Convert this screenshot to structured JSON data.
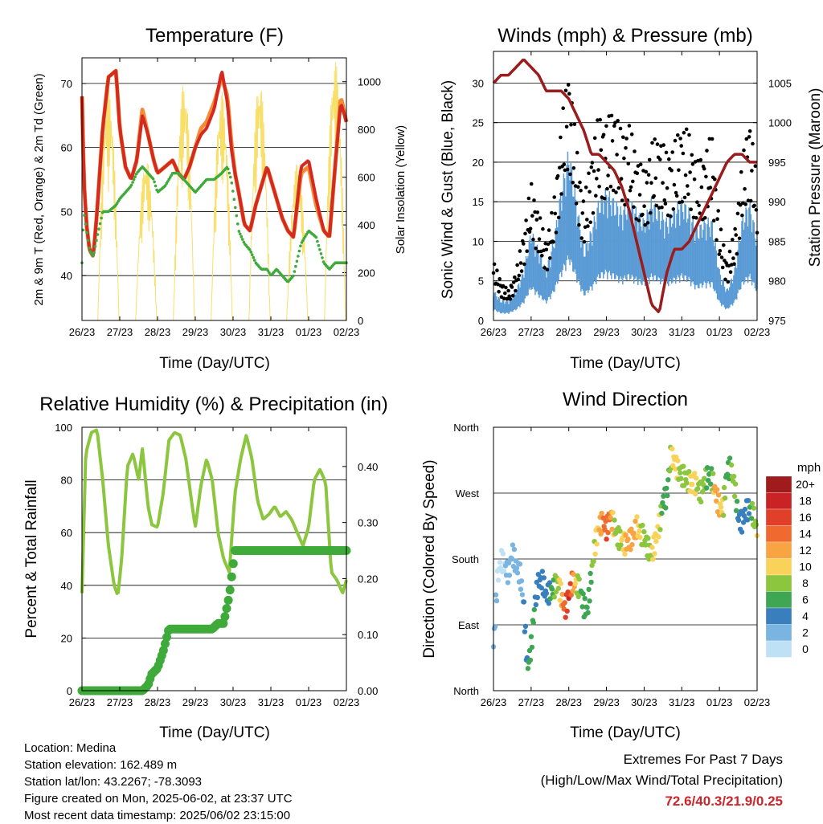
{
  "panels": {
    "temperature": {
      "title": "Temperature (F)",
      "ylabel_left": "2m & 9m T (Red, Orange) & 2m Td (Green)",
      "ylabel_right": "Solar Insolation (Yellow)",
      "xlabel": "Time (Day/UTC)"
    },
    "winds": {
      "title": "Winds (mph) & Pressure (mb)",
      "ylabel_left": "Sonic Wind & Gust (Blue, Black)",
      "ylabel_right": "Station Pressure (Maroon)",
      "xlabel": "Time (Day/UTC)"
    },
    "humidity": {
      "title": "Relative Humidity (%) & Precipitation (in)",
      "ylabel_left": "Percent & Total Rainfall",
      "xlabel": "Time (Day/UTC)"
    },
    "direction": {
      "title": "Wind Direction",
      "ylabel_left": "Direction (Colored By Speed)",
      "xlabel": "Time (Day/UTC)",
      "legend_title": "mph"
    }
  },
  "station": {
    "location": "Location: Medina",
    "elevation": "Station elevation: 162.489 m",
    "latlon": "Station lat/lon: 43.2267; -78.3093",
    "created": "Figure created on Mon, 2025-06-02, at 23:37 UTC",
    "recent": "Most recent data timestamp: 2025/06/02 23:15:00"
  },
  "extremes": {
    "heading": "Extremes For Past 7 Days",
    "subheading": "(High/Low/Max Wind/Total Precipitation)",
    "values": "72.6/40.3/21.9/0.25"
  },
  "colors": {
    "temp2m": "#d42a20",
    "temp9m": "#f58b35",
    "dewpoint": "#3eaa3a",
    "solar": "#f7df6a",
    "wind": "#5b9bd5",
    "gust": "#000000",
    "pressure": "#9b1c1c",
    "rh": "#8cc63f",
    "precip": "#3eaa3a"
  },
  "chart_data": [
    {
      "type": "line",
      "name": "temperature",
      "x_ticks": [
        "26/23",
        "27/23",
        "28/23",
        "29/23",
        "30/23",
        "31/23",
        "01/23",
        "02/23"
      ],
      "x": [
        0,
        0.05,
        0.12,
        0.2,
        0.3,
        0.4,
        0.55,
        0.7,
        0.9,
        1.0,
        1.15,
        1.3,
        1.45,
        1.6,
        1.75,
        1.9,
        2.0,
        2.2,
        2.4,
        2.55,
        2.7,
        2.85,
        3.0,
        3.15,
        3.3,
        3.5,
        3.7,
        3.85,
        3.95,
        4.05,
        4.15,
        4.3,
        4.45,
        4.6,
        4.75,
        4.9,
        5.0,
        5.15,
        5.3,
        5.45,
        5.6,
        5.8,
        6.0,
        6.2,
        6.4,
        6.55,
        6.7,
        6.85,
        7.0
      ],
      "series": [
        {
          "name": "2m T",
          "values": [
            68,
            55,
            48,
            44,
            43,
            50,
            63,
            71,
            72,
            63,
            57,
            55,
            58,
            65,
            62,
            58,
            56,
            57,
            58,
            56,
            55,
            57,
            60,
            62,
            63,
            66,
            72,
            67,
            60,
            56,
            53,
            48,
            47,
            51,
            54,
            57,
            55,
            52,
            49,
            47,
            46,
            57,
            58,
            52,
            47,
            46,
            57,
            67,
            64
          ]
        },
        {
          "name": "9m T",
          "values": [
            68,
            55,
            48,
            44,
            43,
            50,
            63,
            71,
            72,
            63,
            57,
            55,
            58,
            66,
            62,
            58,
            56,
            57,
            58,
            56,
            55,
            57,
            60,
            63,
            64,
            67,
            71,
            68,
            61,
            56,
            53,
            48,
            47,
            51,
            54,
            57,
            55,
            52,
            49,
            47,
            46,
            56,
            57,
            51,
            47,
            46,
            57,
            68,
            64
          ]
        },
        {
          "name": "2m Td",
          "values": [
            42,
            50,
            47,
            44,
            43,
            46,
            50,
            50,
            51,
            52,
            53,
            54,
            56,
            57,
            56,
            55,
            53,
            54,
            56,
            56,
            55,
            54,
            53,
            54,
            55,
            55,
            56,
            57,
            55,
            51,
            47,
            45,
            44,
            42,
            41,
            41,
            40,
            41,
            40,
            39,
            40,
            45,
            47,
            46,
            42,
            41,
            42,
            42,
            42
          ]
        }
      ],
      "solar_insolation_peaks": [
        {
          "x": 0.7,
          "value": 980
        },
        {
          "x": 1.7,
          "value": 680
        },
        {
          "x": 2.7,
          "value": 1000
        },
        {
          "x": 3.7,
          "value": 960
        },
        {
          "x": 4.7,
          "value": 1010
        },
        {
          "x": 5.7,
          "value": 660
        },
        {
          "x": 6.7,
          "value": 1090
        }
      ],
      "ylim": [
        33,
        74
      ],
      "y_ticks": [
        40,
        50,
        60,
        70
      ],
      "y2lim": [
        0,
        1100
      ],
      "y2_ticks": [
        0,
        200,
        400,
        600,
        800,
        1000
      ],
      "grid": true
    },
    {
      "type": "line",
      "name": "winds",
      "x_ticks": [
        "26/23",
        "27/23",
        "28/23",
        "29/23",
        "30/23",
        "31/23",
        "01/23",
        "02/23"
      ],
      "x": [
        0,
        0.2,
        0.4,
        0.6,
        0.8,
        1.0,
        1.2,
        1.4,
        1.6,
        1.8,
        2.0,
        2.2,
        2.4,
        2.6,
        2.8,
        3.0,
        3.2,
        3.4,
        3.6,
        3.8,
        4.0,
        4.2,
        4.4,
        4.6,
        4.8,
        5.0,
        5.2,
        5.4,
        5.6,
        5.8,
        6.0,
        6.2,
        6.4,
        6.6,
        6.8,
        7.0
      ],
      "series": [
        {
          "name": "Sonic Wind",
          "values": [
            3,
            2,
            2,
            3,
            5,
            9,
            7,
            5,
            8,
            13,
            17,
            12,
            7,
            9,
            12,
            13,
            12,
            11,
            12,
            11,
            10,
            12,
            11,
            10,
            11,
            12,
            11,
            9,
            10,
            10,
            5,
            3,
            5,
            10,
            12,
            8
          ]
        },
        {
          "name": "Gust",
          "values": [
            6,
            4,
            3,
            5,
            9,
            14,
            11,
            8,
            12,
            20,
            26,
            18,
            12,
            17,
            21,
            20,
            22,
            19,
            20,
            17,
            15,
            18,
            19,
            17,
            18,
            20,
            19,
            16,
            17,
            19,
            10,
            6,
            9,
            16,
            21,
            14
          ]
        },
        {
          "name": "Station Pressure",
          "values": [
            1005,
            1006,
            1006,
            1007,
            1008,
            1007,
            1006,
            1004,
            1004,
            1004,
            1003,
            1001,
            999,
            996,
            996,
            995,
            994,
            992,
            989,
            985,
            981,
            977,
            976,
            981,
            984,
            984,
            985,
            987,
            989,
            991,
            993,
            995,
            996,
            996,
            995,
            995
          ]
        }
      ],
      "ylim": [
        0,
        34
      ],
      "y_ticks": [
        0,
        5,
        10,
        15,
        20,
        25,
        30
      ],
      "y2lim": [
        975,
        1009
      ],
      "y2_ticks": [
        975,
        980,
        985,
        990,
        995,
        1000,
        1005
      ],
      "grid": true
    },
    {
      "type": "line",
      "name": "humidity",
      "x_ticks": [
        "26/23",
        "27/23",
        "28/23",
        "29/23",
        "30/23",
        "31/23",
        "01/23",
        "02/23"
      ],
      "x": [
        0,
        0.1,
        0.25,
        0.4,
        0.55,
        0.7,
        0.85,
        0.95,
        1.05,
        1.2,
        1.35,
        1.5,
        1.6,
        1.75,
        1.85,
        2.0,
        2.15,
        2.3,
        2.45,
        2.6,
        2.75,
        2.9,
        3.0,
        3.15,
        3.3,
        3.45,
        3.6,
        3.75,
        3.9,
        4.05,
        4.2,
        4.35,
        4.5,
        4.65,
        4.8,
        4.95,
        5.1,
        5.25,
        5.4,
        5.55,
        5.7,
        5.85,
        6.0,
        6.15,
        6.3,
        6.45,
        6.6,
        6.75,
        6.9,
        7.0
      ],
      "series": [
        {
          "name": "Relative Humidity",
          "values": [
            37,
            90,
            98,
            99,
            80,
            55,
            40,
            36,
            50,
            85,
            90,
            80,
            92,
            70,
            63,
            62,
            75,
            95,
            98,
            97,
            88,
            72,
            62,
            78,
            88,
            80,
            60,
            50,
            45,
            75,
            88,
            97,
            88,
            72,
            65,
            67,
            70,
            66,
            68,
            65,
            60,
            55,
            62,
            80,
            84,
            79,
            45,
            42,
            37,
            42
          ]
        },
        {
          "name": "Total Precipitation",
          "values": [
            0,
            0,
            0,
            0,
            0,
            0,
            0,
            0,
            0,
            0,
            0,
            0,
            0,
            0.01,
            0.03,
            0.04,
            0.07,
            0.11,
            0.11,
            0.11,
            0.11,
            0.11,
            0.11,
            0.11,
            0.11,
            0.11,
            0.12,
            0.12,
            0.17,
            0.25,
            0.25,
            0.25,
            0.25,
            0.25,
            0.25,
            0.25,
            0.25,
            0.25,
            0.25,
            0.25,
            0.25,
            0.25,
            0.25,
            0.25,
            0.25,
            0.25,
            0.25,
            0.25,
            0.25,
            0.25
          ]
        }
      ],
      "ylim": [
        0,
        100
      ],
      "y_ticks": [
        0,
        20,
        40,
        60,
        80,
        100
      ],
      "y2lim": [
        0,
        0.47
      ],
      "y2_ticks": [
        "0.00",
        "0.10",
        "0.20",
        "0.30",
        "0.40"
      ],
      "grid": true
    },
    {
      "type": "scatter",
      "name": "wind_direction",
      "x_ticks": [
        "26/23",
        "27/23",
        "28/23",
        "29/23",
        "30/23",
        "31/23",
        "01/23",
        "02/23"
      ],
      "y_ticks": [
        "North",
        "East",
        "South",
        "West",
        "North"
      ],
      "ylim": [
        0,
        360
      ],
      "x": [
        0,
        0.1,
        0.2,
        0.3,
        0.4,
        0.5,
        0.6,
        0.7,
        0.8,
        0.9,
        1.0,
        1.1,
        1.2,
        1.3,
        1.4,
        1.5,
        1.6,
        1.7,
        1.8,
        1.9,
        2.0,
        2.1,
        2.2,
        2.3,
        2.4,
        2.5,
        2.6,
        2.7,
        2.8,
        2.9,
        3.0,
        3.1,
        3.2,
        3.3,
        3.4,
        3.5,
        3.6,
        3.7,
        3.8,
        3.9,
        4.0,
        4.1,
        4.2,
        4.3,
        4.4,
        4.5,
        4.6,
        4.7,
        4.8,
        4.9,
        5.0,
        5.1,
        5.2,
        5.3,
        5.4,
        5.5,
        5.6,
        5.7,
        5.8,
        5.9,
        6.0,
        6.1,
        6.2,
        6.3,
        6.4,
        6.5,
        6.6,
        6.7,
        6.8,
        6.9,
        7.0
      ],
      "direction": [
        60,
        150,
        180,
        170,
        160,
        190,
        170,
        160,
        120,
        30,
        60,
        120,
        150,
        150,
        130,
        135,
        140,
        150,
        130,
        110,
        130,
        150,
        145,
        140,
        115,
        110,
        160,
        200,
        225,
        230,
        220,
        240,
        225,
        210,
        205,
        200,
        205,
        210,
        225,
        215,
        210,
        195,
        185,
        205,
        225,
        260,
        265,
        320,
        315,
        300,
        295,
        290,
        285,
        285,
        280,
        270,
        285,
        295,
        290,
        270,
        250,
        250,
        300,
        305,
        280,
        235,
        230,
        245,
        250,
        240,
        220
      ],
      "speed": [
        2,
        2,
        1,
        2,
        2,
        2,
        2,
        3,
        4,
        6,
        7,
        6,
        5,
        5,
        4,
        6,
        8,
        9,
        12,
        16,
        18,
        14,
        10,
        8,
        7,
        6,
        8,
        10,
        12,
        14,
        16,
        14,
        10,
        8,
        10,
        12,
        14,
        13,
        12,
        10,
        9,
        8,
        10,
        12,
        11,
        6,
        6,
        9,
        12,
        10,
        8,
        9,
        10,
        11,
        10,
        8,
        9,
        7,
        8,
        14,
        12,
        10,
        6,
        8,
        10,
        5,
        4,
        4,
        6,
        9,
        10
      ]
    }
  ],
  "legend": {
    "labels": [
      "20+",
      "18",
      "16",
      "14",
      "12",
      "10",
      "8",
      "6",
      "4",
      "2",
      "0"
    ],
    "colors": [
      "#a01c1c",
      "#c92326",
      "#e0402a",
      "#f06a30",
      "#f8a443",
      "#f9d25a",
      "#8cc63f",
      "#3fa654",
      "#3a7fbd",
      "#7ab4e0",
      "#bfe1f6"
    ]
  }
}
